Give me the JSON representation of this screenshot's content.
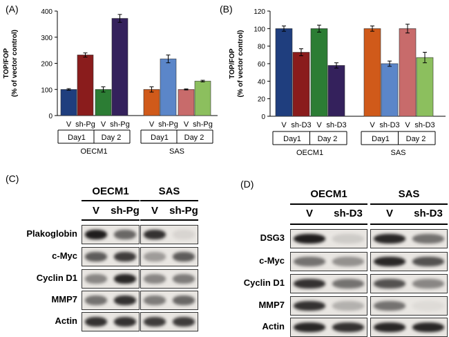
{
  "charts": {
    "A": {
      "letter": "(A)",
      "ylabel1": "TOP/FOP",
      "ylabel2": "(% of vector control)",
      "ylim": [
        0,
        400
      ],
      "yticks": [
        0,
        100,
        200,
        300,
        400
      ],
      "groups": [
        {
          "name": "OECM1",
          "days": [
            {
              "label": "Day1",
              "bars": [
                {
                  "lane": "V",
                  "value": 100,
                  "err": 3,
                  "color": "#1f3e7e"
                },
                {
                  "lane": "sh-Pg",
                  "value": 232,
                  "err": 8,
                  "color": "#8a1c1c"
                }
              ]
            },
            {
              "label": "Day 2",
              "bars": [
                {
                  "lane": "V",
                  "value": 100,
                  "err": 10,
                  "color": "#2c7d34"
                },
                {
                  "lane": "sh-Pg",
                  "value": 372,
                  "err": 15,
                  "color": "#34215c"
                }
              ]
            }
          ]
        },
        {
          "name": "SAS",
          "days": [
            {
              "label": "Day1",
              "bars": [
                {
                  "lane": "V",
                  "value": 100,
                  "err": 10,
                  "color": "#d05a1a"
                },
                {
                  "lane": "sh-Pg",
                  "value": 217,
                  "err": 15,
                  "color": "#5b86c9"
                }
              ]
            },
            {
              "label": "Day 2",
              "bars": [
                {
                  "lane": "V",
                  "value": 100,
                  "err": 2,
                  "color": "#c86b6b"
                },
                {
                  "lane": "sh-Pg",
                  "value": 132,
                  "err": 3,
                  "color": "#8cbf5e"
                }
              ]
            }
          ]
        }
      ]
    },
    "B": {
      "letter": "(B)",
      "ylabel1": "TOP/FOP",
      "ylabel2": "(% of vector control)",
      "ylim": [
        0,
        120
      ],
      "yticks": [
        0,
        20,
        40,
        60,
        80,
        100,
        120
      ],
      "groups": [
        {
          "name": "OECM1",
          "days": [
            {
              "label": "Day1",
              "bars": [
                {
                  "lane": "V",
                  "value": 100,
                  "err": 3,
                  "color": "#1f3e7e"
                },
                {
                  "lane": "sh-D3",
                  "value": 73,
                  "err": 4,
                  "color": "#8a1c1c"
                }
              ]
            },
            {
              "label": "Day 2",
              "bars": [
                {
                  "lane": "V",
                  "value": 100,
                  "err": 4,
                  "color": "#2c7d34"
                },
                {
                  "lane": "sh-D3",
                  "value": 58,
                  "err": 3,
                  "color": "#34215c"
                }
              ]
            }
          ]
        },
        {
          "name": "SAS",
          "days": [
            {
              "label": "Day1",
              "bars": [
                {
                  "lane": "V",
                  "value": 100,
                  "err": 3,
                  "color": "#d05a1a"
                },
                {
                  "lane": "sh-D3",
                  "value": 60,
                  "err": 3,
                  "color": "#5b86c9"
                }
              ]
            },
            {
              "label": "Day 2",
              "bars": [
                {
                  "lane": "V",
                  "value": 100,
                  "err": 5,
                  "color": "#c86b6b"
                },
                {
                  "lane": "sh-D3",
                  "value": 67,
                  "err": 6,
                  "color": "#8cbf5e"
                }
              ]
            }
          ]
        }
      ]
    }
  },
  "chart_data": [
    {
      "type": "bar",
      "title": "(A)",
      "ylabel": "TOP/FOP (% of vector control)",
      "ylim": [
        0,
        400
      ],
      "categories": [
        "OECM1 Day1 V",
        "OECM1 Day1 sh-Pg",
        "OECM1 Day 2 V",
        "OECM1 Day 2 sh-Pg",
        "SAS Day1 V",
        "SAS Day1 sh-Pg",
        "SAS Day 2 V",
        "SAS Day 2 sh-Pg"
      ],
      "values": [
        100,
        232,
        100,
        372,
        100,
        217,
        100,
        132
      ],
      "errors": [
        3,
        8,
        10,
        15,
        10,
        15,
        2,
        3
      ]
    },
    {
      "type": "bar",
      "title": "(B)",
      "ylabel": "TOP/FOP (% of vector control)",
      "ylim": [
        0,
        120
      ],
      "categories": [
        "OECM1 Day1 V",
        "OECM1 Day1 sh-D3",
        "OECM1 Day 2 V",
        "OECM1 Day 2 sh-D3",
        "SAS Day1 V",
        "SAS Day1 sh-D3",
        "SAS Day 2 V",
        "SAS Day 2 sh-D3"
      ],
      "values": [
        100,
        73,
        100,
        58,
        100,
        60,
        100,
        67
      ],
      "errors": [
        3,
        4,
        4,
        3,
        3,
        3,
        5,
        6
      ]
    }
  ],
  "blots": {
    "C": {
      "letter": "(C)",
      "groups": [
        {
          "name": "OECM1",
          "lanes": [
            "V",
            "sh-Pg"
          ]
        },
        {
          "name": "SAS",
          "lanes": [
            "V",
            "sh-Pg"
          ]
        }
      ],
      "rows": [
        {
          "label": "Plakoglobin",
          "intensity": [
            0.95,
            0.6,
            0.85,
            0.08
          ]
        },
        {
          "label": "c-Myc",
          "intensity": [
            0.65,
            0.8,
            0.35,
            0.65
          ]
        },
        {
          "label": "Cyclin D1",
          "intensity": [
            0.45,
            0.9,
            0.45,
            0.5
          ]
        },
        {
          "label": "MMP7",
          "intensity": [
            0.55,
            0.85,
            0.5,
            0.6
          ]
        },
        {
          "label": "Actin",
          "intensity": [
            0.85,
            0.85,
            0.8,
            0.8
          ]
        }
      ]
    },
    "D": {
      "letter": "(D)",
      "groups": [
        {
          "name": "OECM1",
          "lanes": [
            "V",
            "sh-D3"
          ]
        },
        {
          "name": "SAS",
          "lanes": [
            "V",
            "sh-D3"
          ]
        }
      ],
      "rows": [
        {
          "label": "DSG3",
          "intensity": [
            0.95,
            0.12,
            0.9,
            0.55
          ]
        },
        {
          "label": "c-Myc",
          "intensity": [
            0.55,
            0.4,
            0.9,
            0.7
          ]
        },
        {
          "label": "Cyclin D1",
          "intensity": [
            0.85,
            0.55,
            0.7,
            0.45
          ]
        },
        {
          "label": "MMP7",
          "intensity": [
            0.85,
            0.25,
            0.55,
            0.05
          ]
        },
        {
          "label": "Actin",
          "intensity": [
            0.9,
            0.85,
            0.9,
            0.9
          ]
        }
      ]
    }
  }
}
